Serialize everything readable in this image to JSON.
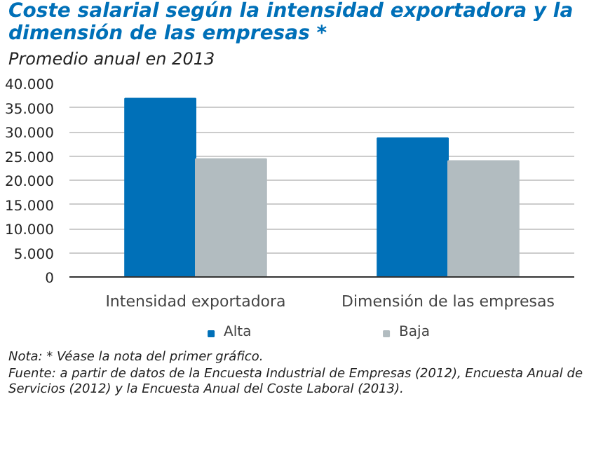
{
  "chart_data": {
    "type": "bar",
    "title": "Coste salarial según la intensidad exportadora y la dimensión de las empresas *",
    "subtitle": "Promedio anual en 2013",
    "categories": [
      "Intensidad exportadora",
      "Dimensión de las empresas"
    ],
    "series": [
      {
        "name": "Alta",
        "color": "#0070b8",
        "values": [
          36900,
          28700
        ]
      },
      {
        "name": "Baja",
        "color": "#b2bcc0",
        "values": [
          24400,
          24000
        ]
      }
    ],
    "ylim": [
      0,
      40000
    ],
    "yticks": [
      {
        "value": 0,
        "label": "0"
      },
      {
        "value": 5000,
        "label": "5.000"
      },
      {
        "value": 10000,
        "label": "10.000"
      },
      {
        "value": 15000,
        "label": "15.000"
      },
      {
        "value": 20000,
        "label": "20.000"
      },
      {
        "value": 25000,
        "label": "25.000"
      },
      {
        "value": 30000,
        "label": "30.000"
      },
      {
        "value": 35000,
        "label": "35.000"
      },
      {
        "value": 40000,
        "label": "40.000"
      }
    ],
    "grid": "y",
    "legend": "bottom",
    "annotations": [
      "Nota: * Véase la nota del primer gráfico.",
      "Fuente: a partir de datos de la Encuesta Industrial de Empresas (2012), Encuesta Anual de Servicios (2012) y la Encuesta Anual del Coste Laboral (2013)."
    ]
  }
}
